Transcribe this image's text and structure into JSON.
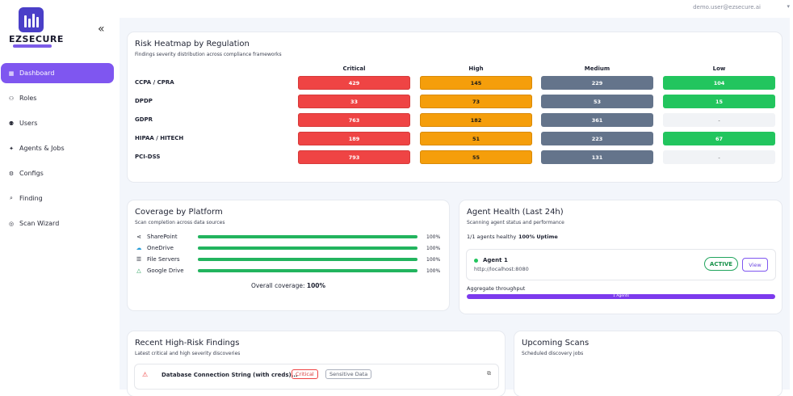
{
  "brand": {
    "name": "EZSECURE"
  },
  "sidebar": {
    "collapse_icon": "«",
    "items": [
      {
        "label": "Dashboard",
        "icon": "dashboard-icon",
        "glyph": "▦"
      },
      {
        "label": "Roles",
        "icon": "roles-icon",
        "glyph": "⚇"
      },
      {
        "label": "Users",
        "icon": "users-icon",
        "glyph": "⚉"
      },
      {
        "label": "Agents & Jobs",
        "icon": "agents-icon",
        "glyph": "✦"
      },
      {
        "label": "Configs",
        "icon": "configs-icon",
        "glyph": "⚙"
      },
      {
        "label": "Finding",
        "icon": "search-icon",
        "glyph": "⌕"
      },
      {
        "label": "Scan Wizard",
        "icon": "scan-icon",
        "glyph": "◎"
      }
    ]
  },
  "header": {
    "user_email": "demo.user@ezsecure.ai",
    "chevron": "▾"
  },
  "heatmap": {
    "title": "Risk Heatmap by Regulation",
    "subtitle": "Findings severity distribution across compliance frameworks",
    "columns": [
      "Critical",
      "High",
      "Medium",
      "Low"
    ],
    "rows": [
      {
        "label": "CCPA / CPRA",
        "values": [
          "429",
          "145",
          "229",
          "104"
        ]
      },
      {
        "label": "DPDP",
        "values": [
          "33",
          "73",
          "53",
          "15"
        ]
      },
      {
        "label": "GDPR",
        "values": [
          "763",
          "182",
          "361",
          "-"
        ]
      },
      {
        "label": "HIPAA / HITECH",
        "values": [
          "189",
          "51",
          "223",
          "67"
        ]
      },
      {
        "label": "PCI-DSS",
        "values": [
          "793",
          "55",
          "131",
          "-"
        ]
      }
    ]
  },
  "coverage": {
    "title": "Coverage by Platform",
    "subtitle": "Scan completion across data sources",
    "platforms": [
      {
        "name": "SharePoint",
        "pct_label": "100%",
        "fraction": 1.0,
        "icon": "share-icon",
        "glyph": "⋖"
      },
      {
        "name": "OneDrive",
        "pct_label": "100%",
        "fraction": 1.0,
        "icon": "cloud-icon",
        "glyph": "☁"
      },
      {
        "name": "File Servers",
        "pct_label": "100%",
        "fraction": 1.0,
        "icon": "server-icon",
        "glyph": "☰"
      },
      {
        "name": "Google Drive",
        "pct_label": "100%",
        "fraction": 1.0,
        "icon": "google-drive-icon",
        "glyph": "△"
      }
    ],
    "overall_label": "Overall coverage:",
    "overall_value": "100%"
  },
  "agent_health": {
    "title": "Agent Health (Last 24h)",
    "subtitle": "Scanning agent status and performance",
    "healthy_text": "1/1 agents healthy",
    "uptime_text": "100% Uptime",
    "agent": {
      "name": "Agent 1",
      "url": "http://localhost:8080",
      "status": "ACTIVE",
      "view_label": "View"
    },
    "throughput_label": "Aggregate throughput",
    "throughput_bar_text": "1 Agents",
    "colors": {
      "active": "#22c55e",
      "bar": "#7c3aed"
    }
  },
  "findings": {
    "title": "Recent High-Risk Findings",
    "subtitle": "Latest critical and high severity discoveries",
    "items": [
      {
        "title": "Database Connection String (with creds)...",
        "severity": "Critical",
        "category": "Sensitive Data"
      }
    ]
  },
  "scans": {
    "title": "Upcoming Scans",
    "subtitle": "Scheduled discovery jobs"
  },
  "colors": {
    "accent": "#7f56f0",
    "critical": "#ef4444",
    "high": "#f59e0b",
    "medium": "#64748b",
    "low": "#22c55e"
  }
}
